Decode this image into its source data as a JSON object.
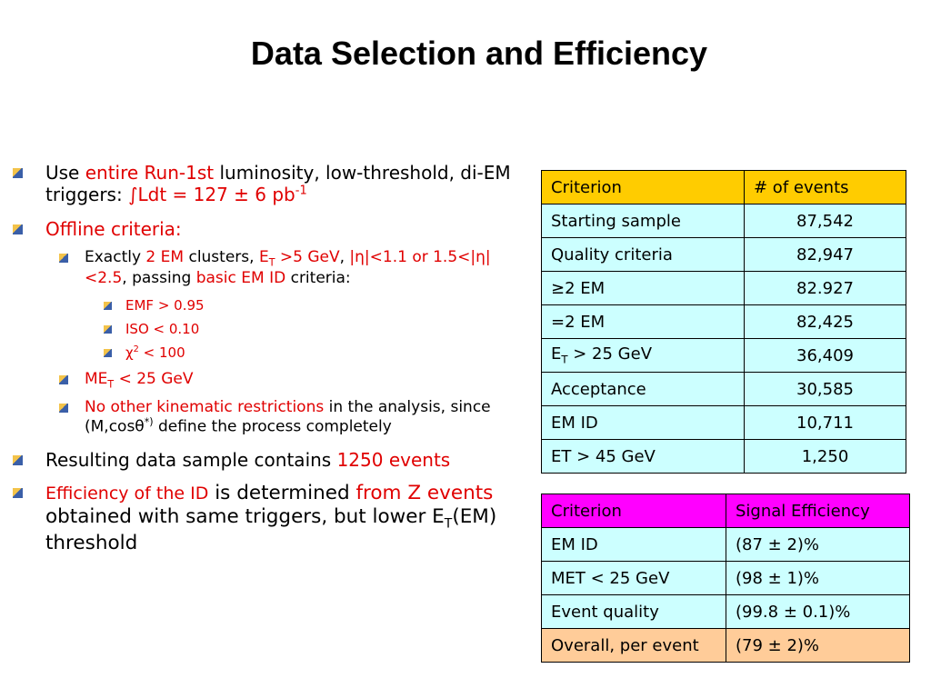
{
  "title": "Data Selection and Efficiency",
  "bullets": [
    {
      "parts": [
        "Use ",
        "entire Run-1st",
        " luminosity, low-threshold, di-EM triggers: ",
        "∫Ldt = 127 ± 6 pb",
        "-1"
      ]
    },
    {
      "parts": [
        "Offline criteria:"
      ],
      "subs": [
        {
          "parts": [
            "Exactly ",
            "2 EM",
            " clusters,  ",
            "E",
            "T",
            " >5 GeV",
            ", ",
            "|η|<1.1 or 1.5<|η|<2.5",
            ", passing ",
            "basic EM ID",
            " criteria:"
          ],
          "subs": [
            {
              "parts": [
                "EMF > 0.95"
              ]
            },
            {
              "parts": [
                "ISO < 0.10"
              ]
            },
            {
              "parts": [
                "χ",
                "2",
                " < 100"
              ]
            }
          ]
        },
        {
          "parts": [
            "ME",
            "T",
            " < 25 GeV"
          ]
        },
        {
          "parts": [
            " No other kinematic restrictions",
            " in the analysis, since (M,cosθ",
            "*)",
            " define the process completely"
          ]
        }
      ]
    },
    {
      "parts": [
        "Resulting data sample contains ",
        "1250 events"
      ]
    },
    {
      "parts": [
        "Efficiency of the ID",
        " is determined ",
        "from Z events",
        " obtained with same triggers, but lower E",
        "T",
        "(EM) threshold"
      ]
    }
  ],
  "events_table": {
    "header": [
      "Criterion",
      "# of events"
    ],
    "rows": [
      [
        "Starting sample",
        "87,542"
      ],
      [
        "Quality criteria",
        "82,947"
      ],
      [
        "≥2 EM",
        "82.927"
      ],
      [
        "=2 EM",
        "82,425"
      ],
      [
        [
          "E",
          "T",
          " > 25 GeV"
        ],
        "36,409"
      ],
      [
        "Acceptance",
        "30,585"
      ],
      [
        "EM ID",
        "10,711"
      ],
      [
        "ET > 45 GeV",
        "1,250"
      ]
    ]
  },
  "efficiency_table": {
    "header": [
      "Criterion",
      "Signal Efficiency"
    ],
    "rows": [
      [
        "EM ID",
        "(87 ± 2)%"
      ],
      [
        "MET < 25 GeV",
        "(98 ± 1)%"
      ],
      [
        "Event quality",
        "(99.8 ± 0.1)%"
      ],
      [
        "Overall, per event",
        "(79 ± 2)%"
      ]
    ]
  }
}
